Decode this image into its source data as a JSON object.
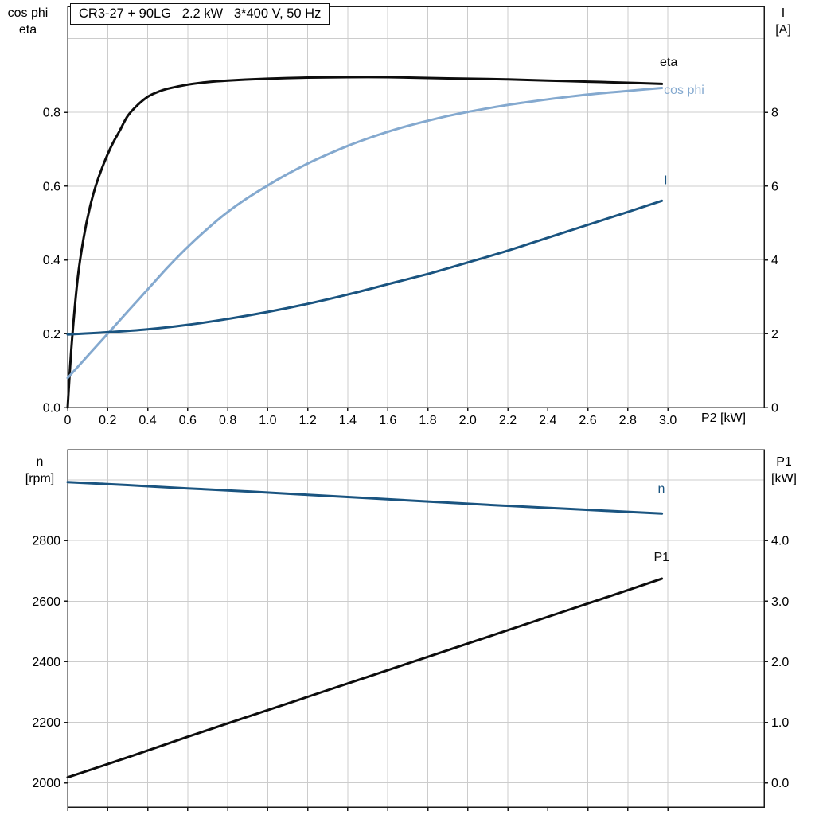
{
  "colors": {
    "black": "#0d0d0d",
    "dark_blue": "#1a5480",
    "light_blue": "#84a9cf",
    "grid": "#cccccc",
    "axis": "#1a1a1a",
    "background": "#ffffff",
    "text": "#000000"
  },
  "chart_data": [
    {
      "type": "line",
      "title": "CR3-27 + 90LG   2.2 kW   3*400 V, 50 Hz",
      "x_axis": {
        "label": "P2 [kW]",
        "min": 0,
        "max": 3.481,
        "tick_values": [
          0,
          0.2,
          0.4,
          0.6,
          0.8,
          1.0,
          1.2,
          1.4,
          1.6,
          1.8,
          2.0,
          2.2,
          2.4,
          2.6,
          2.8,
          3.0
        ],
        "tick_labels": [
          "0",
          "0.2",
          "0.4",
          "0.6",
          "0.8",
          "1.0",
          "1.2",
          "1.4",
          "1.6",
          "1.8",
          "2.0",
          "2.2",
          "2.4",
          "2.6",
          "2.8",
          "3.0"
        ]
      },
      "left_axis": {
        "label_lines": [
          "cos phi",
          "eta"
        ],
        "min": 0,
        "max": 1.087,
        "tick_values": [
          0,
          0.2,
          0.4,
          0.6,
          0.8
        ],
        "tick_labels": [
          "0.0",
          "0.2",
          "0.4",
          "0.6",
          "0.8"
        ],
        "extra_grid_values": [
          1.0
        ]
      },
      "right_axis": {
        "label_lines": [
          "I",
          "[A]"
        ],
        "min": 0,
        "max": 10.87,
        "tick_values": [
          0,
          2,
          4,
          6,
          8
        ],
        "tick_labels": [
          "0",
          "2",
          "4",
          "6",
          "8"
        ]
      },
      "series": [
        {
          "name": "eta",
          "axis": "left",
          "color_key": "black",
          "label": {
            "text": "eta",
            "x": 2.96,
            "y": 0.925
          },
          "points": [
            [
              0,
              0
            ],
            [
              0.02,
              0.17
            ],
            [
              0.05,
              0.35
            ],
            [
              0.08,
              0.46
            ],
            [
              0.11,
              0.54
            ],
            [
              0.14,
              0.6
            ],
            [
              0.18,
              0.66
            ],
            [
              0.22,
              0.71
            ],
            [
              0.26,
              0.75
            ],
            [
              0.3,
              0.79
            ],
            [
              0.35,
              0.82
            ],
            [
              0.4,
              0.842
            ],
            [
              0.45,
              0.855
            ],
            [
              0.5,
              0.864
            ],
            [
              0.6,
              0.875
            ],
            [
              0.7,
              0.882
            ],
            [
              0.8,
              0.886
            ],
            [
              1.0,
              0.891
            ],
            [
              1.2,
              0.894
            ],
            [
              1.4,
              0.895
            ],
            [
              1.6,
              0.895
            ],
            [
              1.8,
              0.893
            ],
            [
              2.0,
              0.891
            ],
            [
              2.2,
              0.889
            ],
            [
              2.4,
              0.886
            ],
            [
              2.6,
              0.883
            ],
            [
              2.8,
              0.88
            ],
            [
              2.97,
              0.877
            ]
          ]
        },
        {
          "name": "cos phi",
          "axis": "left",
          "color_key": "light_blue",
          "label": {
            "text": "cos phi",
            "x": 2.98,
            "y": 0.85
          },
          "points": [
            [
              0,
              0.08
            ],
            [
              0.1,
              0.14
            ],
            [
              0.2,
              0.2
            ],
            [
              0.3,
              0.26
            ],
            [
              0.4,
              0.32
            ],
            [
              0.5,
              0.38
            ],
            [
              0.6,
              0.435
            ],
            [
              0.7,
              0.485
            ],
            [
              0.8,
              0.53
            ],
            [
              0.9,
              0.568
            ],
            [
              1.0,
              0.602
            ],
            [
              1.1,
              0.633
            ],
            [
              1.2,
              0.661
            ],
            [
              1.3,
              0.686
            ],
            [
              1.4,
              0.709
            ],
            [
              1.5,
              0.729
            ],
            [
              1.6,
              0.747
            ],
            [
              1.7,
              0.763
            ],
            [
              1.8,
              0.777
            ],
            [
              1.9,
              0.79
            ],
            [
              2.0,
              0.801
            ],
            [
              2.2,
              0.82
            ],
            [
              2.4,
              0.835
            ],
            [
              2.6,
              0.848
            ],
            [
              2.8,
              0.858
            ],
            [
              2.97,
              0.866
            ]
          ]
        },
        {
          "name": "I",
          "axis": "right",
          "color_key": "dark_blue",
          "label": {
            "text": "I",
            "x": 2.98,
            "y": 6.05
          },
          "points": [
            [
              0,
              1.98
            ],
            [
              0.2,
              2.04
            ],
            [
              0.4,
              2.12
            ],
            [
              0.6,
              2.24
            ],
            [
              0.8,
              2.4
            ],
            [
              1.0,
              2.59
            ],
            [
              1.2,
              2.81
            ],
            [
              1.4,
              3.06
            ],
            [
              1.6,
              3.34
            ],
            [
              1.8,
              3.62
            ],
            [
              2.0,
              3.93
            ],
            [
              2.2,
              4.25
            ],
            [
              2.4,
              4.6
            ],
            [
              2.6,
              4.95
            ],
            [
              2.8,
              5.3
            ],
            [
              2.97,
              5.6
            ]
          ]
        }
      ]
    },
    {
      "type": "line",
      "title": "",
      "x_axis": {
        "label": "",
        "min": 0,
        "max": 3.481,
        "tick_values": [
          0,
          0.2,
          0.4,
          0.6,
          0.8,
          1.0,
          1.2,
          1.4,
          1.6,
          1.8,
          2.0,
          2.2,
          2.4,
          2.6,
          2.8,
          3.0
        ],
        "tick_labels": []
      },
      "left_axis": {
        "label_lines": [
          "n",
          "[rpm]"
        ],
        "min": 1920,
        "max": 3100,
        "tick_values": [
          2000,
          2200,
          2400,
          2600,
          2800
        ],
        "tick_labels": [
          "2000",
          "2200",
          "2400",
          "2600",
          "2800"
        ],
        "extra_grid_values": [
          3000
        ]
      },
      "right_axis": {
        "label_lines": [
          "P1",
          "[kW]"
        ],
        "min": -0.4,
        "max": 5.5,
        "tick_values": [
          0,
          1,
          2,
          3,
          4
        ],
        "tick_labels": [
          "0.0",
          "1.0",
          "2.0",
          "3.0",
          "4.0"
        ]
      },
      "series": [
        {
          "name": "n",
          "axis": "left",
          "color_key": "dark_blue",
          "label": {
            "text": "n",
            "x": 2.95,
            "y": 2958
          },
          "points": [
            [
              0,
              2993
            ],
            [
              0.3,
              2983
            ],
            [
              0.6,
              2972
            ],
            [
              0.9,
              2962
            ],
            [
              1.2,
              2951
            ],
            [
              1.5,
              2940
            ],
            [
              1.8,
              2929
            ],
            [
              2.1,
              2918
            ],
            [
              2.4,
              2908
            ],
            [
              2.7,
              2898
            ],
            [
              2.97,
              2889
            ]
          ]
        },
        {
          "name": "P1",
          "axis": "right",
          "color_key": "black",
          "label": {
            "text": "P1",
            "x": 2.93,
            "y": 3.66
          },
          "points": [
            [
              0,
              0.09
            ],
            [
              0.3,
              0.42
            ],
            [
              0.6,
              0.76
            ],
            [
              0.9,
              1.09
            ],
            [
              1.2,
              1.42
            ],
            [
              1.5,
              1.75
            ],
            [
              1.8,
              2.08
            ],
            [
              2.1,
              2.41
            ],
            [
              2.4,
              2.74
            ],
            [
              2.7,
              3.07
            ],
            [
              2.97,
              3.37
            ]
          ]
        }
      ]
    }
  ]
}
